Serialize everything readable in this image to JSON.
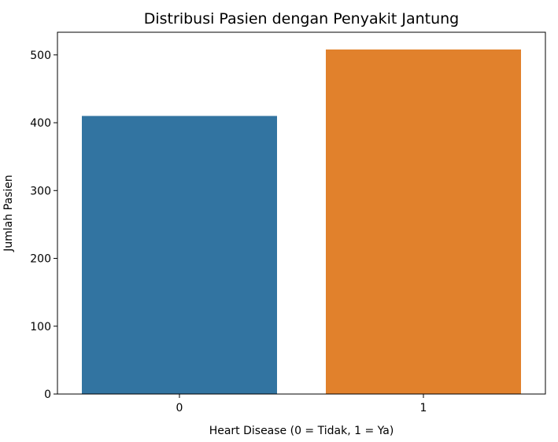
{
  "chart_data": {
    "type": "bar",
    "title": "Distribusi Pasien dengan Penyakit Jantung",
    "xlabel": "Heart Disease (0 = Tidak, 1 = Ya)",
    "ylabel": "Jumlah Pasien",
    "categories": [
      "0",
      "1"
    ],
    "values": [
      410,
      508
    ],
    "colors": [
      "#3274a1",
      "#e1812c"
    ],
    "ylim": [
      0,
      533.4
    ],
    "yticks": [
      0,
      100,
      200,
      300,
      400,
      500
    ],
    "grid": false,
    "legend": "none"
  }
}
